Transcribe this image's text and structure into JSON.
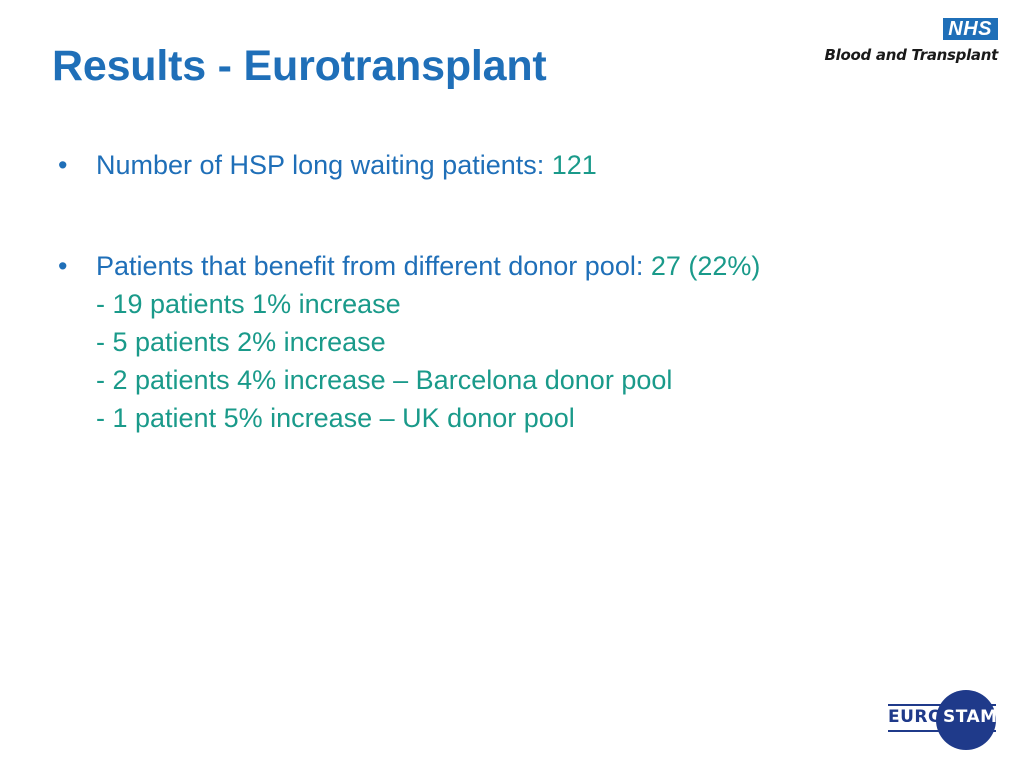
{
  "slide": {
    "title": "Results - Eurotransplant"
  },
  "logos": {
    "nhs_badge": "NHS",
    "nhs_subtitle": "Blood and Transplant",
    "eurostam_part1": "EURO",
    "eurostam_part2": "STAM"
  },
  "colors": {
    "title": "#1f6fb8",
    "value": "#1a9a8a",
    "eurostam": "#1f3a8a"
  },
  "bullets": [
    {
      "text": "Number of HSP long waiting patients:",
      "value": "121"
    },
    {
      "text": "Patients that benefit from different donor pool:",
      "value": "27 (22%)",
      "sub_items": [
        "- 19 patients 1% increase",
        "- 5 patients 2% increase",
        "- 2 patients 4% increase – Barcelona donor pool",
        "- 1 patient 5% increase – UK donor pool"
      ]
    }
  ]
}
